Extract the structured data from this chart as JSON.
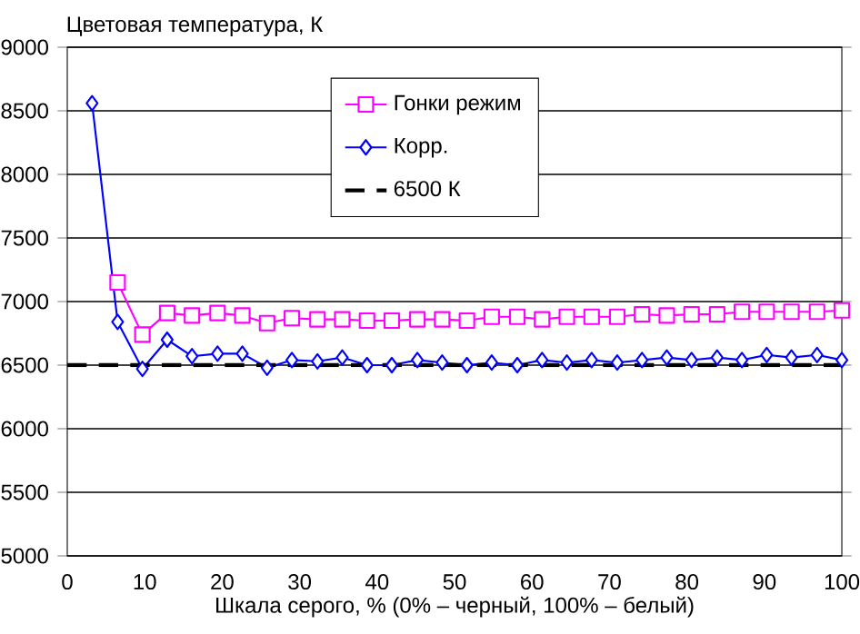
{
  "chart_data": {
    "type": "line",
    "ylabel": "Цветовая температура, К",
    "xlabel": "Шкала серого, % (0% – черный, 100% – белый)",
    "x": [
      3.2,
      6.5,
      9.7,
      12.9,
      16.1,
      19.4,
      22.6,
      25.8,
      29.0,
      32.3,
      35.5,
      38.7,
      41.9,
      45.2,
      48.4,
      51.6,
      54.8,
      58.1,
      61.3,
      64.5,
      67.7,
      71.0,
      74.2,
      77.4,
      80.6,
      83.9,
      87.1,
      90.3,
      93.5,
      96.8,
      100
    ],
    "series": [
      {
        "name": "Гонки режим",
        "color": "#ff00ff",
        "marker": "square",
        "values": [
          null,
          7150,
          6740,
          6910,
          6890,
          6910,
          6890,
          6830,
          6870,
          6860,
          6860,
          6850,
          6850,
          6860,
          6860,
          6850,
          6880,
          6880,
          6860,
          6880,
          6880,
          6880,
          6900,
          6890,
          6900,
          6900,
          6920,
          6920,
          6920,
          6920,
          6930
        ]
      },
      {
        "name": "Корр.",
        "color": "#0000ff",
        "marker": "diamond",
        "values": [
          8560,
          6840,
          6470,
          6700,
          6570,
          6590,
          6590,
          6480,
          6540,
          6530,
          6560,
          6500,
          6500,
          6540,
          6520,
          6500,
          6520,
          6500,
          6540,
          6520,
          6540,
          6520,
          6540,
          6560,
          6540,
          6560,
          6540,
          6580,
          6560,
          6580,
          6540
        ]
      }
    ],
    "ref_lines": [
      {
        "axis": "y",
        "value": 6500,
        "label": "6500 К",
        "color": "#000000",
        "line_style": "dashed"
      }
    ],
    "xlim": [
      0,
      100
    ],
    "ylim": [
      5000,
      9000
    ],
    "xticks": [
      0,
      10,
      20,
      30,
      40,
      50,
      60,
      70,
      80,
      90,
      100
    ],
    "yticks": [
      5000,
      5500,
      6000,
      6500,
      7000,
      7500,
      8000,
      8500,
      9000
    ],
    "grid": "y",
    "legend": "top",
    "line_style": "solid"
  }
}
